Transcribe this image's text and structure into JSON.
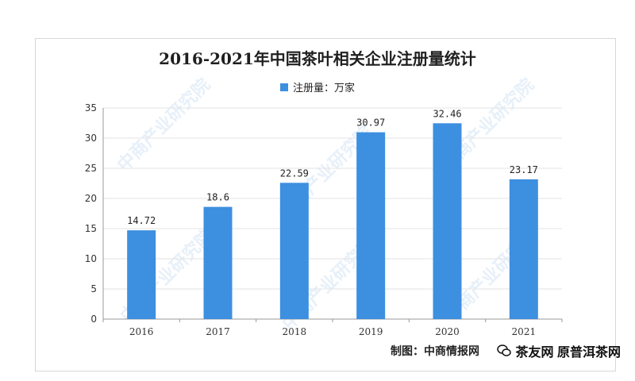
{
  "chart_data": {
    "type": "bar",
    "title": "2016-2021年中国茶叶相关企业注册量统计",
    "legend": "注册量：万家",
    "categories": [
      "2016",
      "2017",
      "2018",
      "2019",
      "2020",
      "2021"
    ],
    "values": [
      14.72,
      18.6,
      22.59,
      30.97,
      32.46,
      23.17
    ],
    "data_labels": [
      "14.72",
      "18.6",
      "22.59",
      "30.97",
      "32.46",
      "23.17"
    ],
    "y_ticks": [
      "0",
      "5",
      "10",
      "15",
      "20",
      "25",
      "30",
      "35"
    ],
    "ylim": [
      0,
      35
    ],
    "grid": true,
    "legend_position": "top-center",
    "bar_color": "#3d8fe0"
  },
  "footer_text": "制图：中商情报网",
  "source_text": "茶友网 原普洱茶网",
  "watermark_text": "中商产业研究院"
}
